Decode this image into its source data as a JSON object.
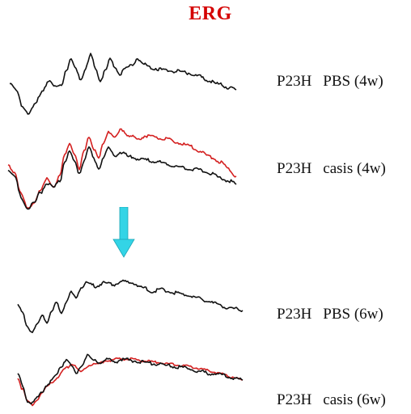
{
  "title": "ERG",
  "rows": [
    {
      "strain": "P23H",
      "condition": "PBS (4w)"
    },
    {
      "strain": "P23H",
      "condition": "casis (4w)"
    },
    {
      "strain": "P23H",
      "condition": "PBS (6w)"
    },
    {
      "strain": "P23H",
      "condition": "casis (6w)"
    }
  ],
  "colors": {
    "title": "#d40000",
    "trace_black": "#111111",
    "trace_red": "#d42020",
    "arrow": "#33d4e6"
  },
  "arrow_icon": "down-arrow-icon"
}
